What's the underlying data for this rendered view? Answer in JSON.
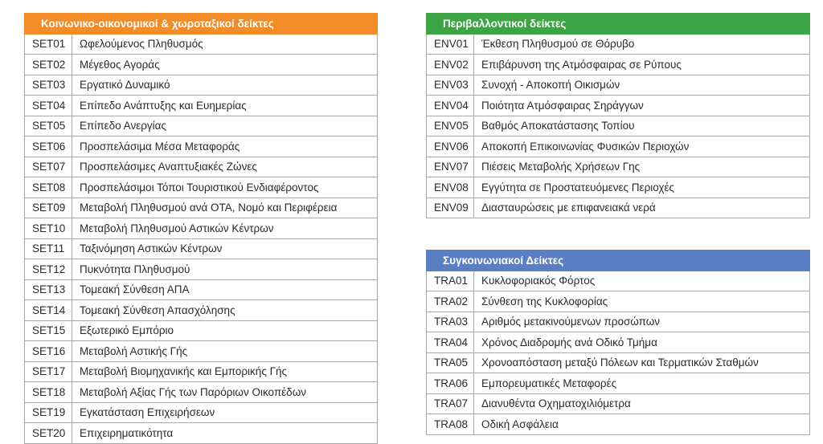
{
  "set": {
    "title": "Κοινωνικο-οικονομικοί & χωροταξικοί δείκτες",
    "color": "#f28c28",
    "rows": [
      {
        "code": "SET01",
        "label": "Ωφελούμενος Πληθυσμός"
      },
      {
        "code": "SET02",
        "label": "Μέγεθος Αγοράς"
      },
      {
        "code": "SET03",
        "label": "Εργατικό Δυναμικό"
      },
      {
        "code": "SET04",
        "label": "Επίπεδο Ανάπτυξης και Ευημερίας"
      },
      {
        "code": "SET05",
        "label": "Επίπεδο Ανεργίας"
      },
      {
        "code": "SET06",
        "label": "Προσπελάσιμα Μέσα Μεταφοράς"
      },
      {
        "code": "SET07",
        "label": "Προσπελάσιμες Αναπτυξιακές Ζώνες"
      },
      {
        "code": "SET08",
        "label": "Προσπελάσιμοι Τόποι Τουριστικού Ενδιαφέροντος"
      },
      {
        "code": "SET09",
        "label": "Μεταβολή Πληθυσμού ανά ΟΤΑ, Νομό και Περιφέρεια"
      },
      {
        "code": "SET10",
        "label": "Μεταβολή Πληθυσμού Αστικών Κέντρων"
      },
      {
        "code": "SET11",
        "label": "Ταξινόμηση Αστικών Κέντρων"
      },
      {
        "code": "SET12",
        "label": "Πυκνότητα Πληθυσμού"
      },
      {
        "code": "SET13",
        "label": "Τομεακή Σύνθεση ΑΠΑ"
      },
      {
        "code": "SET14",
        "label": "Τομεακή Σύνθεση Απασχόλησης"
      },
      {
        "code": "SET15",
        "label": "Εξωτερικό Εμπόριο"
      },
      {
        "code": "SET16",
        "label": "Μεταβολή Αστικής Γής"
      },
      {
        "code": "SET17",
        "label": "Μεταβολή Βιομηχανικής και Εμπορικής Γής"
      },
      {
        "code": "SET18",
        "label": "Μεταβολή Αξίας Γής των Παρόριων Οικοπέδων"
      },
      {
        "code": "SET19",
        "label": "Εγκατάσταση Επιχειρήσεων"
      },
      {
        "code": "SET20",
        "label": "Επιχειρηματικότητα"
      }
    ]
  },
  "env": {
    "title": "Περιβαλλοντικοί δείκτες",
    "color": "#3ca444",
    "rows": [
      {
        "code": "ENV01",
        "label": "Έκθεση Πληθυσμού σε Θόρυβο"
      },
      {
        "code": "ENV02",
        "label": "Επιβάρυνση της Ατμόσφαιρας σε Ρύπους"
      },
      {
        "code": "ENV03",
        "label": "Συνοχή - Αποκοπή Οικισμών"
      },
      {
        "code": "ENV04",
        "label": "Ποιότητα Ατμόσφαιρας Σηράγγων"
      },
      {
        "code": "ENV05",
        "label": "Βαθμός Αποκατάστασης Τοπίου"
      },
      {
        "code": "ENV06",
        "label": "Αποκοπή Επικοινωνίας Φυσικών Περιοχών"
      },
      {
        "code": "ENV07",
        "label": "Πιέσεις Μεταβολής Χρήσεων Γης"
      },
      {
        "code": "ENV08",
        "label": "Εγγύτητα σε Προστατευόμενες Περιοχές"
      },
      {
        "code": "ENV09",
        "label": "Διασταυρώσεις με επιφανειακά νερά"
      }
    ]
  },
  "tra": {
    "title": "Συγκοινωνιακοί Δείκτες",
    "color": "#5b7fc4",
    "rows": [
      {
        "code": "TRA01",
        "label": "Κυκλοφοριακός Φόρτος"
      },
      {
        "code": "TRA02",
        "label": "Σύνθεση της Κυκλοφορίας"
      },
      {
        "code": "TRA03",
        "label": "Αριθμός μετακινούμενων προσώπων"
      },
      {
        "code": "TRA04",
        "label": "Χρόνος Διαδρομής ανά Οδικό Τμήμα"
      },
      {
        "code": "TRA05",
        "label": "Χρονοαπόσταση μεταξύ Πόλεων και Τερματικών Σταθμών"
      },
      {
        "code": "TRA06",
        "label": "Εμπορευματικές Μεταφορές"
      },
      {
        "code": "TRA07",
        "label": "Διανυθέντα Οχηματοχιλιόμετρα"
      },
      {
        "code": "TRA08",
        "label": "Οδική Ασφάλεια"
      }
    ]
  }
}
